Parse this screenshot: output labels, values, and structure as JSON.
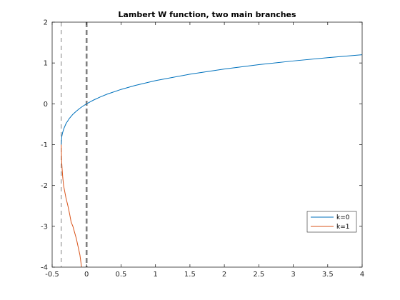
{
  "chart_data": {
    "type": "line",
    "title": "Lambert W function, two main branches",
    "xlabel": "",
    "ylabel": "",
    "xlim": [
      -0.5,
      4
    ],
    "ylim": [
      -4,
      2
    ],
    "grid": false,
    "legend_position": "bottom-right",
    "xticks": [
      -0.5,
      0,
      0.5,
      1,
      1.5,
      2,
      2.5,
      3,
      3.5,
      4
    ],
    "xtick_labels": [
      "-0.5",
      "0",
      "0.5",
      "1",
      "1.5",
      "2",
      "2.5",
      "3",
      "3.5",
      "4"
    ],
    "yticks": [
      -4,
      -3,
      -2,
      -1,
      0,
      1,
      2
    ],
    "ytick_labels": [
      "-4",
      "-3",
      "-2",
      "-1",
      "0",
      "1",
      "2"
    ],
    "series": [
      {
        "name": "k=0",
        "color": "#0072BD",
        "x": [
          -0.3679,
          -0.36,
          -0.35,
          -0.33,
          -0.3,
          -0.25,
          -0.2,
          -0.15,
          -0.1,
          -0.05,
          0,
          0.1,
          0.2,
          0.3,
          0.5,
          0.7,
          1.0,
          1.5,
          2.0,
          2.5,
          3.0,
          3.5,
          4.0
        ],
        "y": [
          -1.0,
          -0.806,
          -0.717,
          -0.608,
          -0.489,
          -0.357,
          -0.259,
          -0.183,
          -0.112,
          -0.053,
          0,
          0.091,
          0.169,
          0.237,
          0.352,
          0.447,
          0.567,
          0.726,
          0.853,
          0.959,
          1.05,
          1.129,
          1.202
        ]
      },
      {
        "name": "k=1",
        "color": "#D95319",
        "x": [
          -0.3679,
          -0.366,
          -0.362,
          -0.355,
          -0.346,
          -0.334,
          -0.3,
          -0.271,
          -0.246,
          -0.224,
          -0.199,
          -0.149,
          -0.097,
          -0.073,
          -0.061
        ],
        "y": [
          -1.0,
          -1.2,
          -1.4,
          -1.6,
          -1.8,
          -2.0,
          -2.3,
          -2.5,
          -2.7,
          -2.9,
          -3.0,
          -3.3,
          -3.7,
          -4.0,
          -4.2
        ]
      }
    ],
    "reference_lines": [
      {
        "axis": "x",
        "value": -0.3679,
        "style": "dashed-thin",
        "color": "#808080"
      },
      {
        "axis": "x",
        "value": 0,
        "style": "dashed-thick",
        "color": "#808080"
      }
    ]
  }
}
